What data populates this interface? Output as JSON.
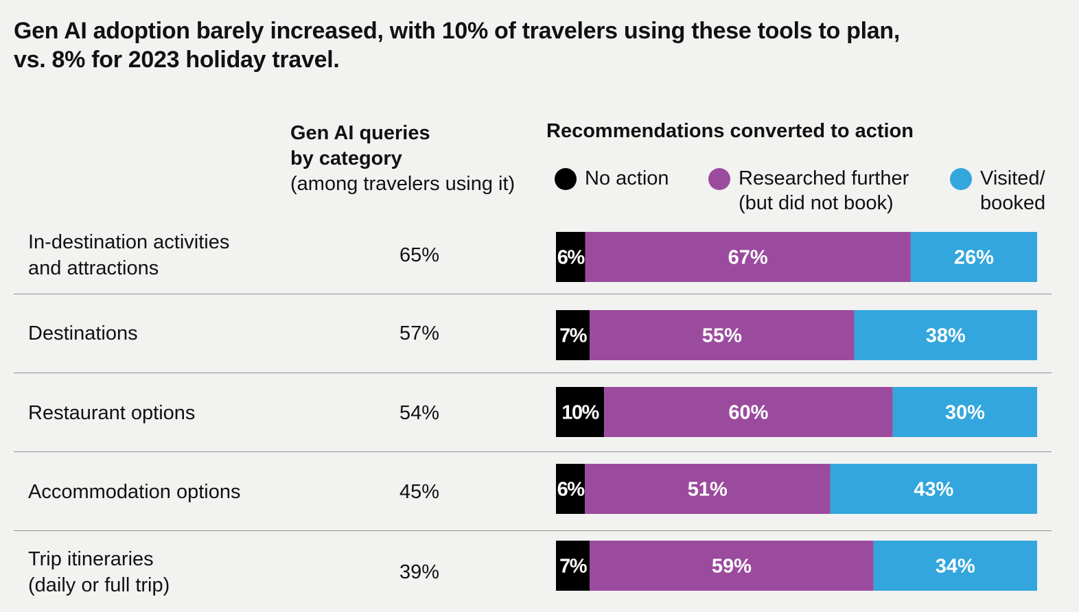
{
  "title": {
    "line1": "Gen AI adoption barely increased, with 10% of travelers using these tools to plan,",
    "line2": "vs. 8% for 2023 holiday travel."
  },
  "column_headers": {
    "queries_bold_1": "Gen AI queries",
    "queries_bold_2": "by category",
    "queries_note": "(among travelers using it)",
    "conversion": "Recommendations converted to action"
  },
  "legend": [
    {
      "line1": "No action",
      "line2": "",
      "color": "#000000"
    },
    {
      "line1": "Researched further",
      "line2": "(but did not book)",
      "color": "#9b4b9e"
    },
    {
      "line1": "Visited/",
      "line2": "booked",
      "color": "#32a6dd"
    }
  ],
  "chart_data": {
    "type": "bar",
    "orientation": "horizontal",
    "stacked": true,
    "percent_stacked": true,
    "categories": [
      "In-destination activities and attractions",
      "Destinations",
      "Restaurant options",
      "Accommodation options",
      "Trip itineraries (daily or full trip)"
    ],
    "category_lines": [
      [
        "In-destination activities",
        "and attractions"
      ],
      [
        "Destinations"
      ],
      [
        "Restaurant options"
      ],
      [
        "Accommodation options"
      ],
      [
        "Trip itineraries",
        "(daily or full trip)"
      ]
    ],
    "query_share": [
      "65%",
      "57%",
      "54%",
      "45%",
      "39%"
    ],
    "series": [
      {
        "name": "No action",
        "color": "#000000",
        "values": [
          6,
          7,
          10,
          6,
          7
        ]
      },
      {
        "name": "Researched further (but did not book)",
        "color": "#9b4b9e",
        "values": [
          67,
          55,
          60,
          51,
          59
        ]
      },
      {
        "name": "Visited/booked",
        "color": "#32a6dd",
        "values": [
          26,
          38,
          30,
          43,
          34
        ]
      }
    ],
    "value_suffix": "%",
    "legend_position": "top"
  }
}
